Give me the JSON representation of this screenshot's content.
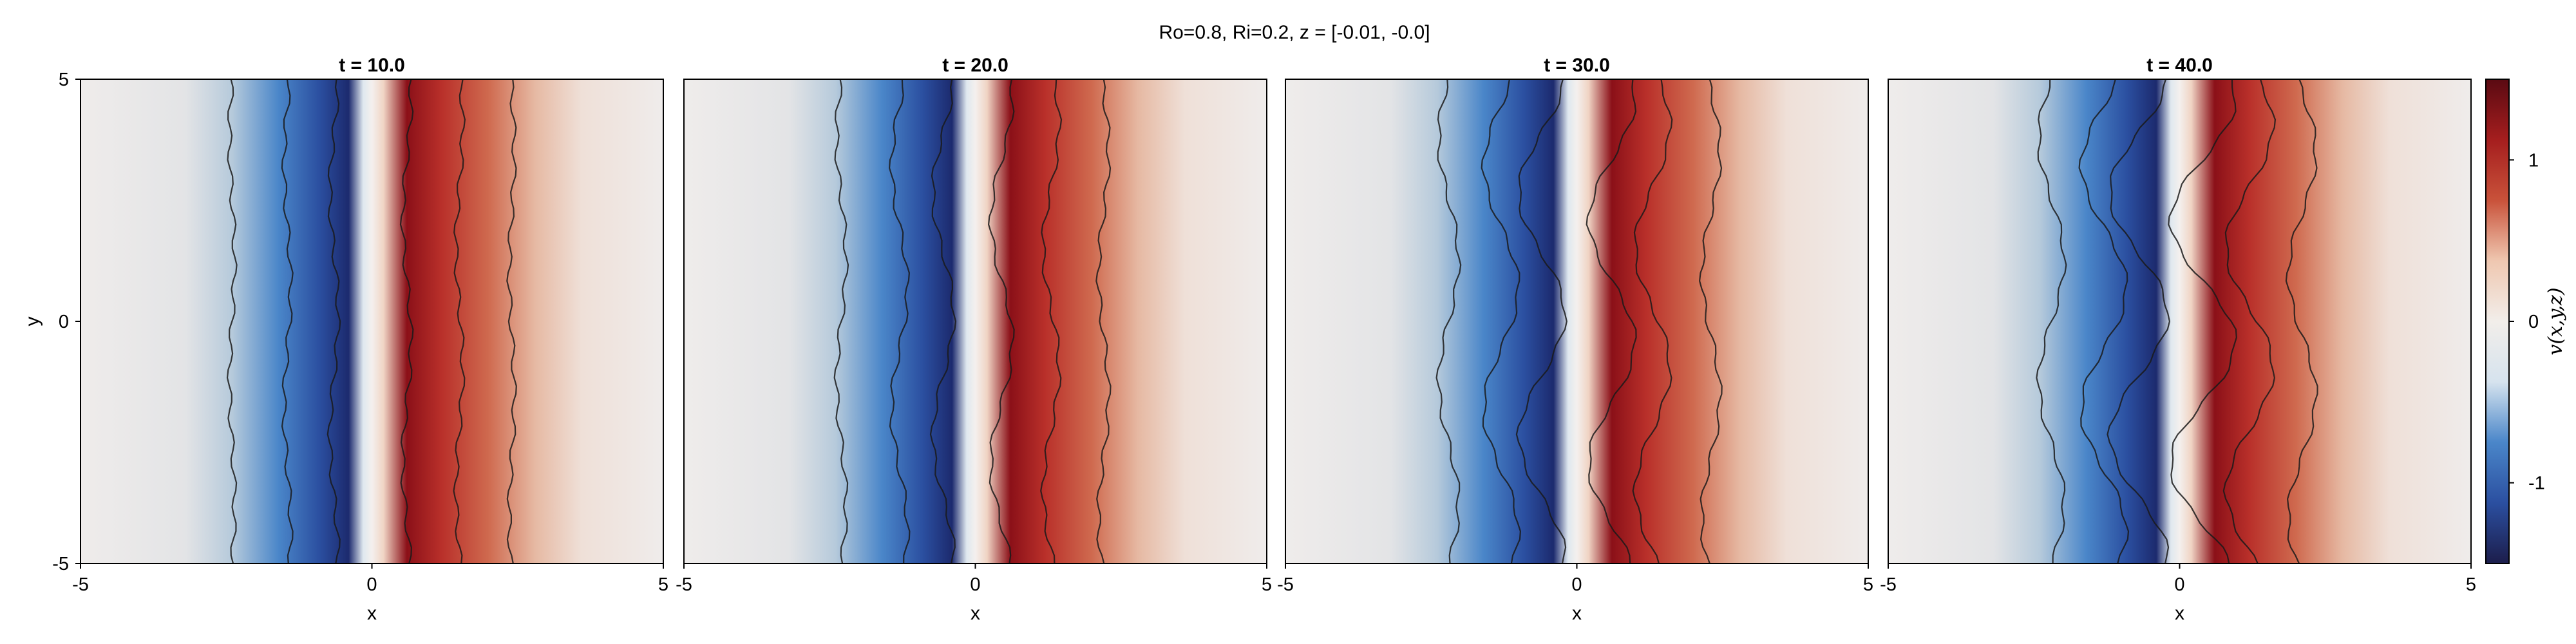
{
  "figure_title": "Ro=0.8, Ri=0.2, z = [-0.01, -0.0]",
  "colorbar": {
    "label": "v(x,y,z)",
    "ticks": [
      "1",
      "0",
      "-1"
    ],
    "tick_values": [
      1,
      0,
      -1
    ],
    "range": [
      -1.5,
      1.5
    ],
    "colormap": [
      "#1c1d4b",
      "#2b4fa0",
      "#4a86c9",
      "#d6e3ee",
      "#f2eeea",
      "#efc7b0",
      "#c9523a",
      "#a51e1e",
      "#5a0a12"
    ]
  },
  "chart_data": [
    {
      "type": "heatmap",
      "title": "t = 10.0",
      "xlabel": "x",
      "ylabel": "y",
      "xlim": [
        -5,
        5
      ],
      "ylim": [
        -5,
        5
      ],
      "xticks": [
        "-5",
        "0",
        "5"
      ],
      "yticks": [
        "-5",
        "0",
        "5"
      ],
      "contour_x_positions": [
        -2.4,
        -1.45,
        -0.65,
        0.6,
        1.5,
        2.4
      ],
      "field_extremes": {
        "min_x": -0.7,
        "max_x": 0.7
      }
    },
    {
      "type": "heatmap",
      "title": "t = 20.0",
      "xlabel": "x",
      "ylabel": "",
      "xlim": [
        -5,
        5
      ],
      "ylim": [
        -5,
        5
      ],
      "xticks": [
        "-5",
        "0",
        "5"
      ],
      "yticks": [],
      "contour_x_positions": [
        -2.3,
        -1.3,
        -0.55,
        0.45,
        1.3,
        2.2
      ],
      "field_extremes": {
        "min_x": -0.6,
        "max_x": 0.6
      }
    },
    {
      "type": "heatmap",
      "title": "t = 30.0",
      "xlabel": "x",
      "ylabel": "",
      "xlim": [
        -5,
        5
      ],
      "ylim": [
        -5,
        5
      ],
      "xticks": [
        "-5",
        "0",
        "5"
      ],
      "yticks": [],
      "contour_x_positions": [
        -2.2,
        -1.3,
        -0.6,
        0.6,
        1.3,
        2.3
      ],
      "field_extremes": {
        "min_x": -0.8,
        "max_x": 0.8
      }
    },
    {
      "type": "heatmap",
      "title": "t = 40.0",
      "xlabel": "x",
      "ylabel": "",
      "xlim": [
        -5,
        5
      ],
      "ylim": [
        -5,
        5
      ],
      "xticks": [
        "-5",
        "0",
        "5"
      ],
      "yticks": [],
      "contour_x_positions": [
        -2.2,
        -1.3,
        -0.7,
        0.4,
        1.2,
        2.1
      ],
      "field_extremes": {
        "min_x": -1.0,
        "max_x": 0.7
      }
    }
  ]
}
